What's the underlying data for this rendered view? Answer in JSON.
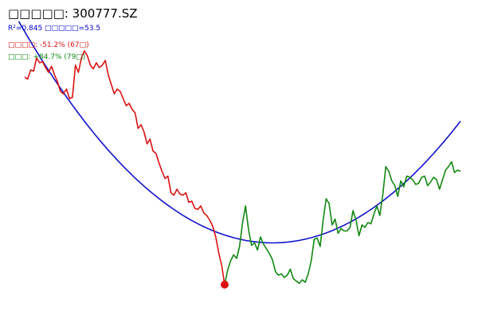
{
  "labels": {
    "title": "□□□□□: 300777.SZ",
    "stats": "R²=0.845 □□□□□=53.5",
    "decline": "□□□□: -51.2% (67□)",
    "rise": "□□□: +84.7% (79□)"
  },
  "colors": {
    "decline": "#dd1111",
    "rise": "#118811",
    "fit": "#1111cc",
    "marker": "#dd1111"
  },
  "chart_data": {
    "type": "line",
    "title": "□□□□□: 300777.SZ",
    "xlim": [
      0,
      146
    ],
    "ylim": [
      0,
      100
    ],
    "grid": false,
    "axes_visible": false,
    "series": [
      {
        "role": "decline",
        "color": "#dd1111",
        "x": [
          0,
          1,
          2,
          3,
          4,
          5,
          6,
          7,
          8,
          9,
          10,
          11,
          12,
          13,
          14,
          15,
          16,
          17,
          18,
          19,
          20,
          21,
          22,
          23,
          24,
          25,
          26,
          27,
          28,
          29,
          30,
          31,
          32,
          33,
          34,
          35,
          36,
          37,
          38,
          39,
          40,
          41,
          42,
          43,
          44,
          45,
          46,
          47,
          48,
          49,
          50,
          51,
          52,
          53,
          54,
          55,
          56,
          57,
          58,
          59,
          60,
          61,
          62,
          63,
          64,
          65,
          66,
          67
        ],
        "y": [
          87.0,
          86.2,
          90.0,
          89.5,
          95.0,
          93.0,
          93.5,
          91.0,
          89.0,
          91.5,
          88.0,
          85.0,
          81.0,
          80.0,
          82.0,
          78.0,
          78.5,
          92.0,
          89.0,
          95.0,
          98.0,
          96.0,
          92.0,
          90.5,
          93.0,
          91.0,
          92.0,
          94.0,
          88.0,
          84.0,
          80.0,
          82.0,
          81.0,
          78.0,
          75.0,
          76.0,
          73.5,
          72.0,
          65.5,
          67.0,
          64.0,
          59.0,
          61.0,
          56.0,
          55.0,
          51.0,
          47.5,
          44.5,
          45.5,
          38.5,
          37.5,
          40.0,
          38.0,
          37.5,
          38.5,
          34.5,
          35.0,
          32.0,
          31.5,
          33.0,
          30.0,
          29.0,
          27.0,
          24.5,
          20.0,
          13.5,
          8.0,
          0.0
        ]
      },
      {
        "role": "rise",
        "color": "#118811",
        "x": [
          67,
          68,
          69,
          70,
          71,
          72,
          73,
          74,
          75,
          76,
          77,
          78,
          79,
          80,
          81,
          82,
          83,
          84,
          85,
          86,
          87,
          88,
          89,
          90,
          91,
          92,
          93,
          94,
          95,
          96,
          97,
          98,
          99,
          100,
          101,
          102,
          103,
          104,
          105,
          106,
          107,
          108,
          109,
          110,
          111,
          112,
          113,
          114,
          115,
          116,
          117,
          118,
          119,
          120,
          121,
          122,
          123,
          124,
          125,
          126,
          127,
          128,
          129,
          130,
          131,
          132,
          133,
          134,
          135,
          136,
          137,
          138,
          139,
          140,
          141,
          142,
          143,
          144,
          145,
          146
        ],
        "y": [
          0.0,
          6.0,
          10.0,
          12.5,
          11.0,
          16.0,
          26.0,
          33.0,
          23.0,
          16.5,
          17.5,
          14.5,
          20.0,
          17.0,
          15.0,
          13.0,
          10.5,
          5.5,
          4.0,
          4.5,
          3.0,
          4.0,
          6.5,
          2.5,
          1.5,
          0.5,
          2.0,
          1.0,
          4.5,
          10.0,
          19.0,
          19.5,
          16.0,
          27.0,
          36.0,
          34.0,
          25.0,
          27.5,
          21.5,
          23.5,
          22.5,
          22.5,
          24.0,
          31.0,
          27.0,
          20.5,
          25.0,
          24.0,
          26.0,
          25.5,
          29.5,
          33.0,
          29.0,
          38.0,
          49.5,
          47.5,
          43.5,
          41.5,
          37.0,
          43.5,
          41.0,
          45.5,
          45.0,
          44.0,
          42.0,
          42.5,
          45.0,
          45.5,
          41.5,
          43.0,
          45.0,
          44.0,
          40.0,
          44.0,
          48.0,
          49.5,
          51.5,
          47.0,
          48.0,
          47.5
        ]
      },
      {
        "role": "fit",
        "name": "",
        "color": "#1111cc",
        "quadratic": {
          "vertex_x": 83,
          "vertex_y": 17.5,
          "a": 0.01286
        },
        "x_range": [
          -2,
          146
        ]
      }
    ],
    "markers": [
      {
        "x": 67,
        "y": 0,
        "color": "#dd1111",
        "shape": "circle"
      }
    ]
  }
}
